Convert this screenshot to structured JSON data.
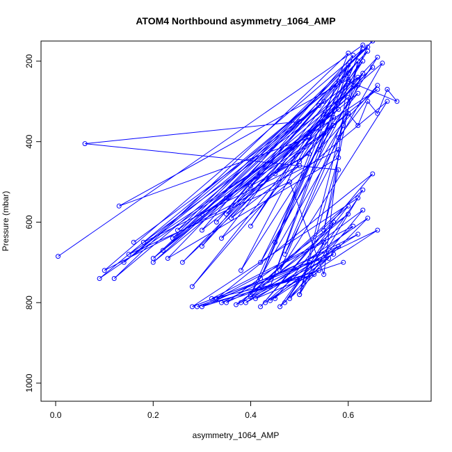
{
  "chart_data": {
    "type": "line",
    "title": "ATOM4 Northbound asymmetry_1064_AMP",
    "xlabel": "asymmetry_1064_AMP",
    "ylabel": "Pressure (mbar)",
    "xlim": [
      -0.03,
      0.77
    ],
    "ylim": [
      1045,
      150
    ],
    "y_inverted": true,
    "x_ticks": [
      "0.0",
      "0.2",
      "0.4",
      "0.6"
    ],
    "x_tick_values": [
      0.0,
      0.2,
      0.4,
      0.6
    ],
    "y_ticks": [
      "200",
      "400",
      "600",
      "800",
      "1000"
    ],
    "y_tick_values": [
      200,
      400,
      600,
      800,
      1000
    ],
    "grid": false,
    "marker": "open-circle",
    "series_color": "#0000ff",
    "series": [
      {
        "x": [
          0.005,
          0.63,
          0.42,
          0.6,
          0.38,
          0.66,
          0.3,
          0.58,
          0.14,
          0.55,
          0.12,
          0.6,
          0.45,
          0.63,
          0.28,
          0.62,
          0.2,
          0.5,
          0.06,
          0.58,
          0.55,
          0.62,
          0.35,
          0.6,
          0.42,
          0.64,
          0.24,
          0.52,
          0.13,
          0.6,
          0.4,
          0.67,
          0.22,
          0.54,
          0.33,
          0.63,
          0.1,
          0.58,
          0.47,
          0.62,
          0.18,
          0.5,
          0.36,
          0.65,
          0.26,
          0.57,
          0.44,
          0.61,
          0.3,
          0.66,
          0.15,
          0.48,
          0.55,
          0.6,
          0.09,
          0.52,
          0.4,
          0.64,
          0.23,
          0.58,
          0.5,
          0.62,
          0.34,
          0.68,
          0.46,
          0.59
        ],
        "y": [
          685,
          160,
          740,
          210,
          720,
          190,
          660,
          250,
          700,
          300,
          740,
          180,
          650,
          230,
          760,
          280,
          690,
          350,
          405,
          470,
          620,
          200,
          580,
          330,
          700,
          165,
          640,
          390,
          560,
          245,
          780,
          205,
          670,
          310,
          600,
          170,
          720,
          420,
          680,
          260,
          650,
          460,
          590,
          215,
          700,
          340,
          760,
          185,
          620,
          270,
          680,
          500,
          730,
          230,
          740,
          380,
          610,
          175,
          690,
          440,
          780,
          200,
          640,
          300,
          720,
          360
        ]
      },
      {
        "x": [
          0.45,
          0.6,
          0.38,
          0.63,
          0.5,
          0.57,
          0.42,
          0.65,
          0.33,
          0.55,
          0.47,
          0.62,
          0.28,
          0.52,
          0.4,
          0.6,
          0.35,
          0.66,
          0.44,
          0.58,
          0.3,
          0.54,
          0.48,
          0.63,
          0.37,
          0.56,
          0.43,
          0.61,
          0.32,
          0.5,
          0.46,
          0.64,
          0.39,
          0.57,
          0.29,
          0.53,
          0.41,
          0.62,
          0.34,
          0.59
        ],
        "y": [
          790,
          560,
          800,
          520,
          780,
          600,
          810,
          480,
          790,
          650,
          800,
          540,
          810,
          700,
          785,
          580,
          800,
          620,
          795,
          660,
          810,
          720,
          790,
          570,
          805,
          690,
          800,
          610,
          790,
          740,
          810,
          590,
          800,
          680,
          810,
          730,
          790,
          630,
          800,
          700
        ]
      },
      {
        "x": [
          0.16,
          0.62,
          0.2,
          0.58,
          0.25,
          0.65,
          0.3,
          0.55,
          0.35,
          0.6,
          0.4,
          0.52,
          0.45,
          0.63,
          0.5,
          0.57,
          0.54,
          0.66,
          0.58,
          0.6,
          0.62,
          0.64,
          0.66,
          0.68,
          0.7,
          0.6
        ],
        "y": [
          650,
          240,
          700,
          320,
          620,
          150,
          580,
          380,
          540,
          290,
          510,
          430,
          480,
          200,
          450,
          360,
          420,
          260,
          390,
          330,
          360,
          300,
          330,
          270,
          300,
          250
        ]
      }
    ]
  }
}
